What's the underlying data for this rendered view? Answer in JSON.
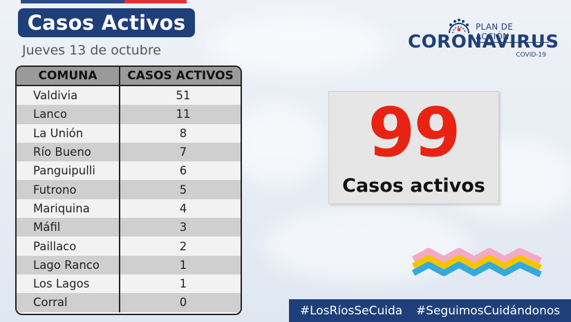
{
  "title": "Casos Activos",
  "date": "Jueves 13 de octubre",
  "table": {
    "headers": [
      "COMUNA",
      "CASOS ACTIVOS"
    ],
    "rows": [
      {
        "comuna": "Valdivia",
        "casos": "51"
      },
      {
        "comuna": "Lanco",
        "casos": "11"
      },
      {
        "comuna": "La Unión",
        "casos": "8"
      },
      {
        "comuna": "Río Bueno",
        "casos": "7"
      },
      {
        "comuna": "Panguipulli",
        "casos": "6"
      },
      {
        "comuna": "Futrono",
        "casos": "5"
      },
      {
        "comuna": "Mariquina",
        "casos": "4"
      },
      {
        "comuna": "Máfil",
        "casos": "3"
      },
      {
        "comuna": "Paillaco",
        "casos": "2"
      },
      {
        "comuna": "Lago Ranco",
        "casos": "1"
      },
      {
        "comuna": "Los Lagos",
        "casos": "1"
      },
      {
        "comuna": "Corral",
        "casos": "0"
      }
    ]
  },
  "logo": {
    "plan": "PLAN DE ACCIÓN",
    "name": "CORONAVIRUS",
    "sub": "COVID-19",
    "icon": "virus-icon"
  },
  "total": {
    "value": "99",
    "label": "Casos activos"
  },
  "hashtags": [
    "#LosRíosSeCuida",
    "#SeguimosCuidándonos"
  ],
  "colors": {
    "navy": "#1f3f7a",
    "red": "#e82314",
    "wave_pink": "#f4a9c8",
    "wave_yellow": "#f5c400",
    "wave_blue": "#33a9dd"
  }
}
